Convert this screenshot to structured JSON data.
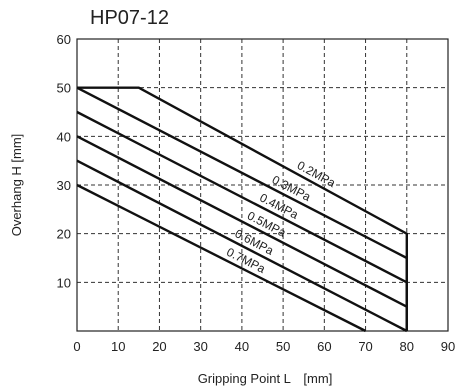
{
  "chart_data": {
    "type": "line",
    "title": "HP07-12",
    "xlabel": "Gripping Point L　[mm]",
    "ylabel": "Overhang H [mm]",
    "xlim": [
      0,
      90
    ],
    "ylim": [
      0,
      60
    ],
    "x_ticks": [
      "0",
      "10",
      "20",
      "30",
      "40",
      "50",
      "60",
      "70",
      "80",
      "90"
    ],
    "y_ticks": [
      "10",
      "20",
      "30",
      "40",
      "50",
      "60"
    ],
    "grid": true,
    "series": [
      {
        "name": "0.2MPa",
        "points": [
          [
            0,
            50
          ],
          [
            15,
            50
          ],
          [
            80,
            20
          ],
          [
            80,
            0
          ]
        ]
      },
      {
        "name": "0.3MPa",
        "points": [
          [
            0,
            50
          ],
          [
            80,
            15
          ],
          [
            80,
            0
          ]
        ]
      },
      {
        "name": "0.4MPa",
        "points": [
          [
            0,
            45
          ],
          [
            80,
            10
          ],
          [
            80,
            0
          ]
        ]
      },
      {
        "name": "0.5MPa",
        "points": [
          [
            0,
            40
          ],
          [
            80,
            5
          ],
          [
            80,
            0
          ]
        ]
      },
      {
        "name": "0.6MPa",
        "points": [
          [
            0,
            35
          ],
          [
            80,
            0
          ]
        ]
      },
      {
        "name": "0.7MPa",
        "points": [
          [
            0,
            30
          ],
          [
            70,
            0
          ]
        ]
      }
    ]
  }
}
